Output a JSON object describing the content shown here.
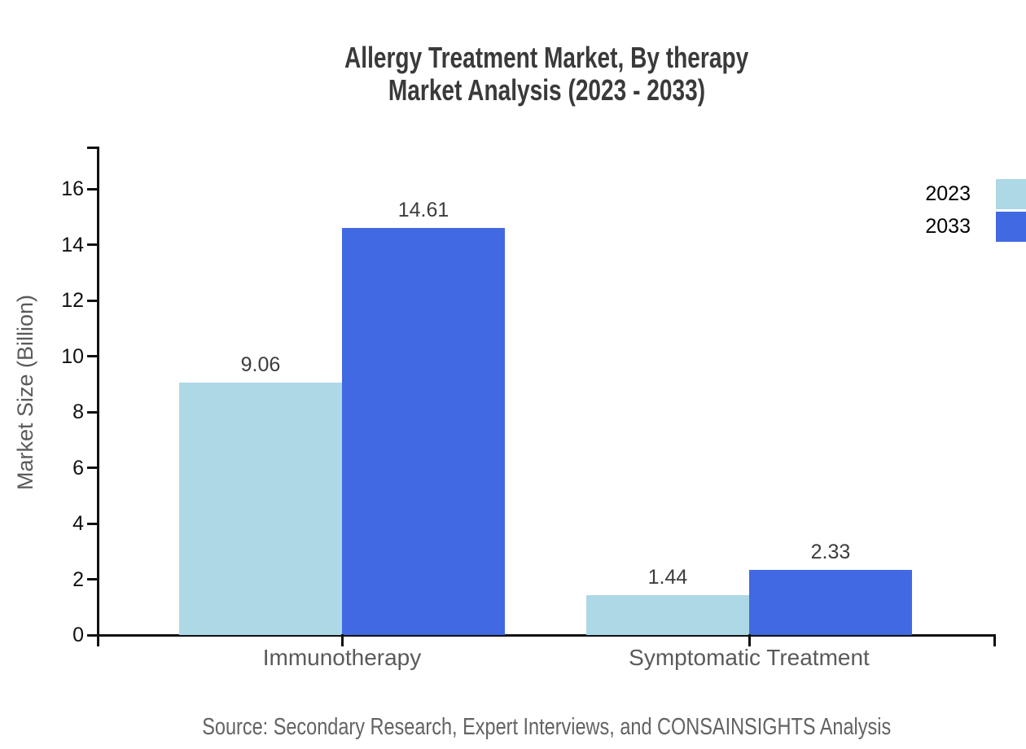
{
  "title": {
    "line1": "Allergy Treatment Market, By therapy",
    "line2": "Market Analysis (2023 - 2033)"
  },
  "source_note": "Source: Secondary Research, Expert Interviews, and CONSAINSIGHTS Analysis",
  "legend": [
    {
      "label": "2023",
      "color": "#ADD8E6"
    },
    {
      "label": "2033",
      "color": "#4169E1"
    }
  ],
  "chart_data": {
    "type": "bar",
    "title": "Allergy Treatment Market, By therapy — Market Analysis (2023 - 2033)",
    "categories": [
      "Immunotherapy",
      "Symptomatic Treatment"
    ],
    "series": [
      {
        "name": "2023",
        "color": "#ADD8E6",
        "values": [
          9.06,
          1.44
        ]
      },
      {
        "name": "2033",
        "color": "#4169E1",
        "values": [
          14.61,
          2.33
        ]
      }
    ],
    "xlabel": "",
    "ylabel": "Market Size (Billion)",
    "yticks": [
      0,
      2,
      4,
      6,
      8,
      10,
      12,
      14,
      16
    ],
    "ylim": [
      0,
      17.5
    ],
    "grid": false,
    "legend_position": "top-right",
    "value_labels_shown": true,
    "value_label_format": "0.00"
  },
  "colors": {
    "axis": "#111111",
    "title_text": "#3a3a3a",
    "tick_text": "#111111",
    "value_text": "#3d3d3d",
    "category_text": "#5a5a5a",
    "source_text": "#636363",
    "background": "#ffffff"
  }
}
